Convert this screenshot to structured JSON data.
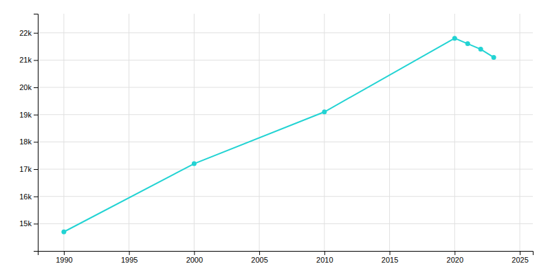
{
  "chart_data": {
    "type": "line",
    "x": [
      1990,
      2000,
      2010,
      2020,
      2021,
      2022,
      2023
    ],
    "values": [
      14700,
      17200,
      19100,
      21800,
      21600,
      21400,
      21100
    ],
    "color": "#22d3d3",
    "marker": "circle",
    "xlim": [
      1988,
      2026
    ],
    "ylim": [
      14000,
      22700
    ],
    "xticks": [
      1990,
      1995,
      2000,
      2005,
      2010,
      2015,
      2020,
      2025
    ],
    "yticks": [
      {
        "value": 15000,
        "label": "15k"
      },
      {
        "value": 16000,
        "label": "16k"
      },
      {
        "value": 17000,
        "label": "17k"
      },
      {
        "value": 18000,
        "label": "18k"
      },
      {
        "value": 19000,
        "label": "19k"
      },
      {
        "value": 20000,
        "label": "20k"
      },
      {
        "value": 21000,
        "label": "21k"
      },
      {
        "value": 22000,
        "label": "22k"
      }
    ],
    "grid": true
  }
}
